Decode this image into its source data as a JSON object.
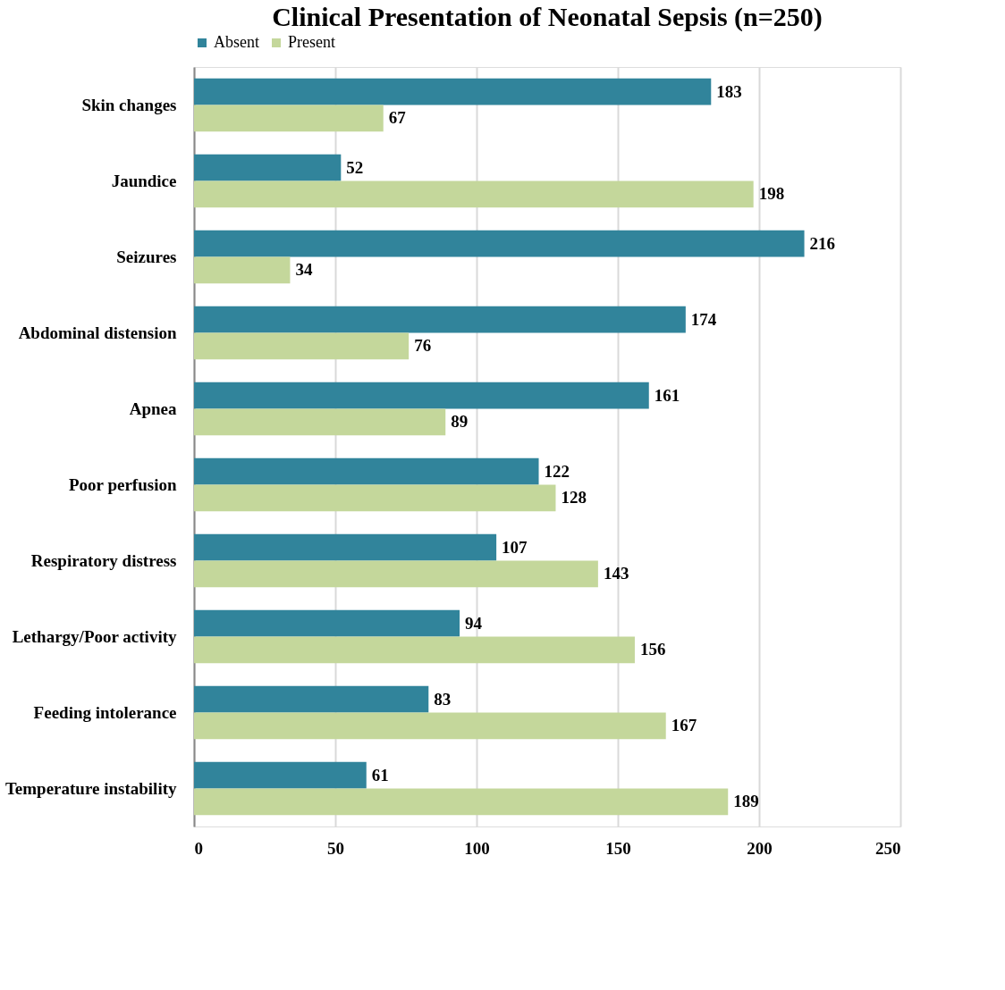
{
  "chart_data": {
    "type": "bar",
    "orientation": "horizontal",
    "title": "Clinical Presentation of Neonatal Sepsis (n=250)",
    "categories": [
      "Skin changes",
      "Jaundice",
      "Seizures",
      "Abdominal distension",
      "Apnea",
      "Poor perfusion",
      "Respiratory distress",
      "Lethargy/Poor activity",
      "Feeding intolerance",
      "Temperature instability"
    ],
    "series": [
      {
        "name": "Absent",
        "color": "#31849b",
        "values": [
          183,
          52,
          216,
          174,
          161,
          122,
          107,
          94,
          83,
          61
        ]
      },
      {
        "name": "Present",
        "color": "#c4d79b",
        "values": [
          67,
          198,
          34,
          76,
          89,
          128,
          143,
          156,
          167,
          189
        ]
      }
    ],
    "xlim": [
      0,
      250
    ],
    "xticks": [
      0,
      50,
      100,
      150,
      200,
      250
    ],
    "grid": "x",
    "legend": "top",
    "data_labels": true
  }
}
